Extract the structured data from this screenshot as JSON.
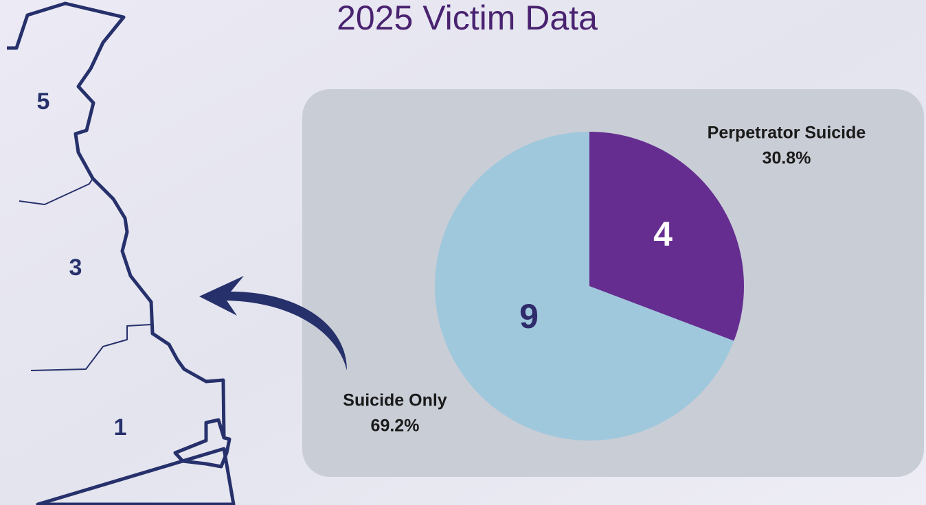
{
  "title": "2025 Victim Data",
  "map": {
    "labels": [
      "5",
      "3",
      "1"
    ]
  },
  "chart_data": {
    "type": "pie",
    "categories": [
      "Perpetrator Suicide",
      "Suicide Only"
    ],
    "values": [
      4,
      9
    ],
    "colors": [
      "#652d90",
      "#a0c8dc"
    ],
    "percent_values": [
      30.8,
      69.2
    ],
    "percent_labels": [
      "30.8%",
      "69.2%"
    ]
  }
}
